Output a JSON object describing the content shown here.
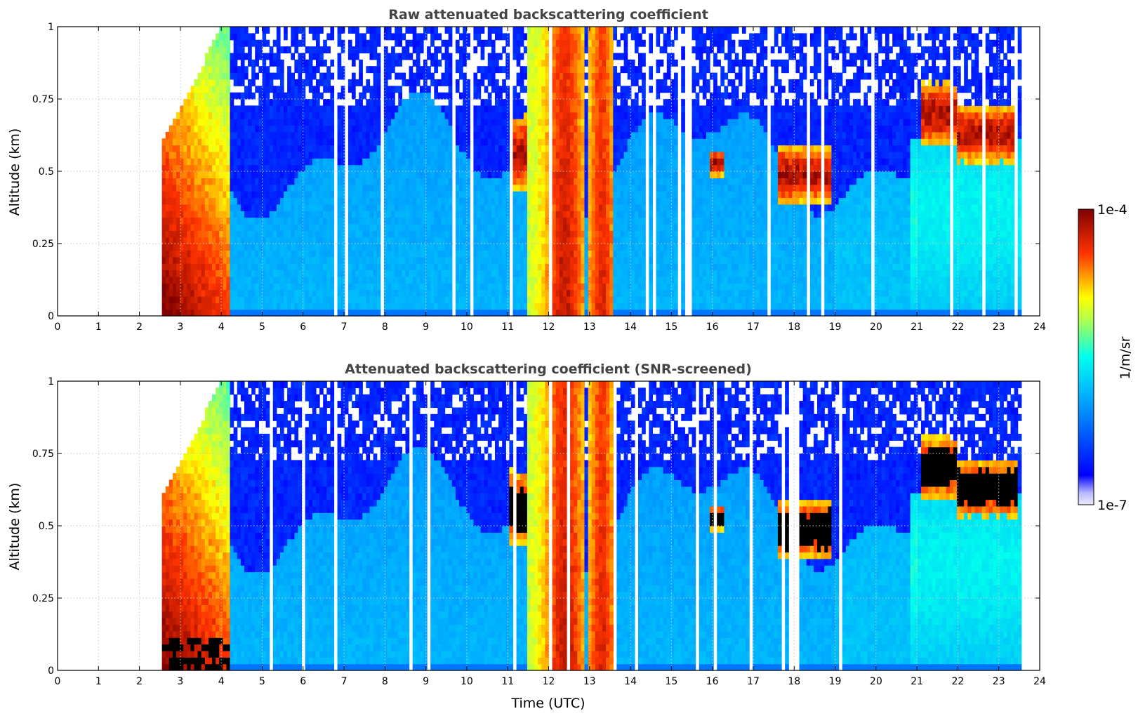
{
  "chart_data": [
    {
      "type": "heatmap",
      "title": "Raw attenuated backscattering coefficient",
      "ylabel": "Altitude (km)",
      "xlabel": "",
      "xlim": [
        0,
        24
      ],
      "ylim": [
        0,
        1
      ],
      "x_ticks": [
        "0",
        "1",
        "2",
        "3",
        "4",
        "5",
        "6",
        "7",
        "8",
        "9",
        "10",
        "11",
        "12",
        "13",
        "14",
        "15",
        "16",
        "17",
        "18",
        "19",
        "20",
        "21",
        "22",
        "23",
        "24"
      ],
      "y_ticks": [
        "0",
        "0.25",
        "0.5",
        "0.75",
        "1"
      ],
      "data_start_utc": 2.55,
      "data_end_utc": 23.55,
      "screened": false,
      "grid": true
    },
    {
      "type": "heatmap",
      "title": "Attenuated backscattering coefficient (SNR-screened)",
      "ylabel": "Altitude (km)",
      "xlabel": "Time (UTC)",
      "xlim": [
        0,
        24
      ],
      "ylim": [
        0,
        1
      ],
      "x_ticks": [
        "0",
        "1",
        "2",
        "3",
        "4",
        "5",
        "6",
        "7",
        "8",
        "9",
        "10",
        "11",
        "12",
        "13",
        "14",
        "15",
        "16",
        "17",
        "18",
        "19",
        "20",
        "21",
        "22",
        "23",
        "24"
      ],
      "y_ticks": [
        "0",
        "0.25",
        "0.5",
        "0.75",
        "1"
      ],
      "data_start_utc": 2.55,
      "data_end_utc": 23.55,
      "screened": true,
      "grid": true
    }
  ],
  "colorbar": {
    "label": "1/m/sr",
    "max_label": "1e-4",
    "min_label": "1e-7",
    "scale": "log",
    "colormap": "jet"
  },
  "features": {
    "strong_aerosol_periods_utc": [
      [
        2.55,
        4.2
      ],
      [
        11.5,
        12.9
      ],
      [
        13.0,
        13.6
      ]
    ],
    "elevated_layers": [
      {
        "t": [
          11.0,
          11.5
        ],
        "alt_km": [
          0.42,
          0.7
        ]
      },
      {
        "t": [
          15.9,
          16.3
        ],
        "alt_km": [
          0.48,
          0.58
        ]
      },
      {
        "t": [
          17.6,
          18.9
        ],
        "alt_km": [
          0.38,
          0.6
        ]
      },
      {
        "t": [
          21.1,
          22.0
        ],
        "alt_km": [
          0.58,
          0.82
        ]
      },
      {
        "t": [
          22.0,
          23.5
        ],
        "alt_km": [
          0.52,
          0.74
        ]
      }
    ]
  }
}
